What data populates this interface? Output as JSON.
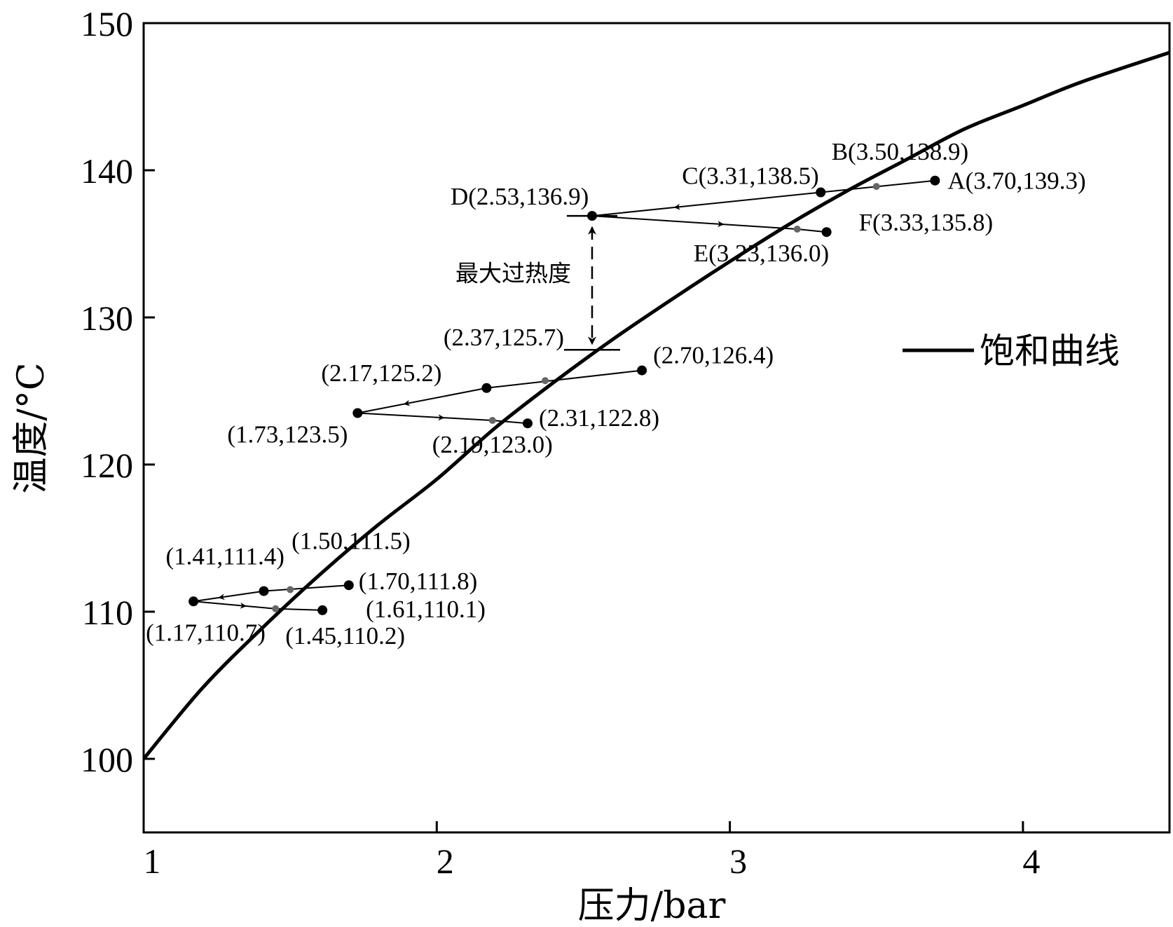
{
  "chart_data": {
    "type": "line",
    "xlabel": "压力/bar",
    "ylabel": "温度/°C",
    "xlim": [
      1,
      4.5
    ],
    "ylim": [
      95,
      150
    ],
    "xticks": [
      1,
      2,
      3,
      4
    ],
    "yticks": [
      100,
      110,
      120,
      130,
      140,
      150
    ],
    "legend": {
      "label": "饱和曲线",
      "position": "right"
    },
    "saturation_curve": {
      "name": "饱和曲线",
      "x": [
        1.0,
        1.2,
        1.4,
        1.6,
        1.8,
        2.0,
        2.2,
        2.4,
        2.6,
        2.8,
        3.0,
        3.2,
        3.4,
        3.6,
        3.8,
        4.0,
        4.2,
        4.5
      ],
      "y": [
        100.0,
        104.8,
        108.8,
        112.5,
        115.9,
        119.0,
        122.5,
        125.6,
        128.5,
        131.2,
        133.8,
        136.3,
        138.6,
        140.7,
        142.8,
        144.4,
        146.0,
        148.0
      ]
    },
    "groups": [
      {
        "cycle": [
          [
            1.7,
            111.8
          ],
          [
            1.41,
            111.4
          ],
          [
            1.17,
            110.7
          ],
          [
            1.45,
            110.2
          ],
          [
            1.61,
            110.1
          ]
        ],
        "crossings": [
          [
            1.5,
            111.5
          ],
          [
            1.45,
            110.2
          ]
        ],
        "points": [
          {
            "x": 1.7,
            "y": 111.8,
            "label": "(1.70,111.8)"
          },
          {
            "x": 1.41,
            "y": 111.4,
            "label": "(1.41,111.4)"
          },
          {
            "x": 1.5,
            "y": 111.5,
            "label": "(1.50,111.5)"
          },
          {
            "x": 1.17,
            "y": 110.7,
            "label": "(1.17,110.7)"
          },
          {
            "x": 1.45,
            "y": 110.2,
            "label": "(1.45,110.2)"
          },
          {
            "x": 1.61,
            "y": 110.1,
            "label": "(1.61,110.1)"
          }
        ]
      },
      {
        "cycle": [
          [
            2.7,
            126.4
          ],
          [
            2.17,
            125.2
          ],
          [
            1.73,
            123.5
          ],
          [
            2.19,
            123.0
          ],
          [
            2.31,
            122.8
          ]
        ],
        "crossings": [
          [
            2.37,
            125.7
          ],
          [
            2.19,
            123.0
          ]
        ],
        "points": [
          {
            "x": 2.7,
            "y": 126.4,
            "label": "(2.70,126.4)"
          },
          {
            "x": 2.17,
            "y": 125.2,
            "label": "(2.17,125.2)"
          },
          {
            "x": 1.73,
            "y": 123.5,
            "label": "(1.73,123.5)"
          },
          {
            "x": 2.19,
            "y": 123.0,
            "label": "(2.19,123.0)"
          },
          {
            "x": 2.31,
            "y": 122.8,
            "label": "(2.31,122.8)"
          }
        ]
      },
      {
        "cycle": [
          [
            3.7,
            139.3
          ],
          [
            3.31,
            138.5
          ],
          [
            2.53,
            136.9
          ],
          [
            3.23,
            136.0
          ],
          [
            3.33,
            135.8
          ]
        ],
        "crossings": [
          [
            3.5,
            138.9
          ],
          [
            3.23,
            136.0
          ]
        ],
        "points": [
          {
            "x": 3.7,
            "y": 139.3,
            "label": "A(3.70,139.3)"
          },
          {
            "x": 3.5,
            "y": 138.9,
            "label": "B(3.50,138.9)"
          },
          {
            "x": 3.31,
            "y": 138.5,
            "label": "C(3.31,138.5)"
          },
          {
            "x": 2.53,
            "y": 136.9,
            "label": "D(2.53,136.9)"
          },
          {
            "x": 3.23,
            "y": 136.0,
            "label": "E(3.23,136.0)"
          },
          {
            "x": 3.33,
            "y": 135.8,
            "label": "F(3.33,135.8)"
          }
        ]
      }
    ],
    "superheat": {
      "label": "最大过热度",
      "from": [
        2.53,
        136.9
      ],
      "to": [
        2.53,
        127.8
      ],
      "ref_label": "(2.37,125.7)"
    }
  }
}
